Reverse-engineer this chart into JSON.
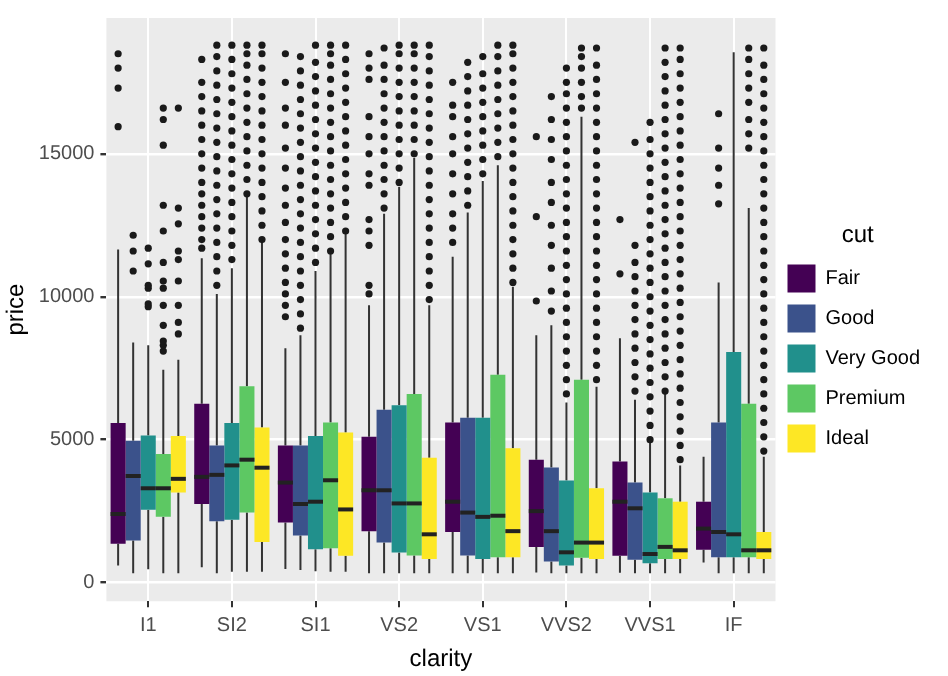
{
  "chart_data": {
    "type": "box",
    "xlabel": "clarity",
    "ylabel": "price",
    "legend_title": "cut",
    "legend": "right",
    "grid": true,
    "categories": [
      "I1",
      "SI2",
      "SI1",
      "VS2",
      "VS1",
      "VVS2",
      "VVS1",
      "IF"
    ],
    "ylim": [
      -650,
      19750
    ],
    "yticks": [
      0,
      5000,
      10000,
      15000
    ],
    "series": [
      {
        "name": "Fair",
        "color": "#440154",
        "boxes": [
          {
            "low": 600,
            "q1": 1360,
            "median": 2400,
            "q3": 5580,
            "high": 11650,
            "outliers": [
              15950,
              17300,
              18000,
              18500
            ]
          },
          {
            "low": 540,
            "q1": 2750,
            "median": 3700,
            "q3": 6260,
            "high": 11350,
            "outliers": [
              11700,
              12000,
              12400,
              12800,
              13200,
              13600,
              14000,
              14500,
              15000,
              15500,
              16000,
              16500,
              17000,
              17500,
              18300
            ]
          },
          {
            "low": 480,
            "q1": 2100,
            "median": 3500,
            "q3": 4800,
            "high": 8200,
            "outliers": [
              9300,
              9700,
              10100,
              10500,
              11000,
              11500,
              12000,
              12600,
              13200,
              13800,
              14500,
              15200,
              16000,
              16600,
              17500,
              18500
            ]
          },
          {
            "low": 330,
            "q1": 1800,
            "median": 3230,
            "q3": 5100,
            "high": 9700,
            "outliers": [
              10100,
              10400,
              11800,
              12300,
              12700,
              13900,
              14300,
              15000,
              15600,
              16300,
              17600,
              18000,
              18500
            ]
          },
          {
            "low": 330,
            "q1": 1770,
            "median": 2830,
            "q3": 5600,
            "high": 11400,
            "outliers": [
              11900,
              12400,
              12900,
              13600,
              14300,
              15000,
              15600,
              16300,
              16700,
              17500
            ]
          },
          {
            "low": 350,
            "q1": 1250,
            "median": 2500,
            "q3": 4300,
            "high": 8650,
            "outliers": [
              9850,
              12800,
              15600
            ]
          },
          {
            "low": 345,
            "q1": 940,
            "median": 2830,
            "q3": 4240,
            "high": 8550,
            "outliers": [
              10800,
              12700
            ]
          },
          {
            "low": 700,
            "q1": 1150,
            "median": 1890,
            "q3": 2830,
            "high": 4400
          }
        ]
      },
      {
        "name": "Good",
        "color": "#3b528b",
        "boxes": [
          {
            "low": 330,
            "q1": 1470,
            "median": 3730,
            "q3": 4960,
            "high": 8400,
            "outliers": [
              10900,
              11600,
              12150
            ]
          },
          {
            "low": 330,
            "q1": 2150,
            "median": 3770,
            "q3": 4800,
            "high": 10100,
            "outliers": [
              10400,
              10900,
              11400,
              11900,
              12400,
              12900,
              13400,
              13900,
              14400,
              14900,
              15400,
              15900,
              16400,
              16900,
              17400,
              17900,
              18400,
              18800
            ]
          },
          {
            "low": 440,
            "q1": 1650,
            "median": 2750,
            "q3": 4800,
            "high": 8650,
            "outliers": [
              8900,
              9400,
              9900,
              10400,
              10900,
              11400,
              11900,
              12400,
              12900,
              13400,
              13900,
              14400,
              14900,
              15400,
              15900,
              16400,
              16900,
              17400,
              17900,
              18400
            ]
          },
          {
            "low": 330,
            "q1": 1400,
            "median": 3230,
            "q3": 6050,
            "high": 12900,
            "outliers": [
              13100,
              13600,
              14100,
              14600,
              15100,
              15600,
              16100,
              16600,
              17100,
              17600,
              18100,
              18700
            ]
          },
          {
            "low": 330,
            "q1": 950,
            "median": 2450,
            "q3": 5770,
            "high": 12950,
            "outliers": [
              13200,
              13700,
              14200,
              14700,
              15200,
              15700,
              16200,
              16700,
              17200,
              17700,
              18200
            ]
          },
          {
            "low": 330,
            "q1": 740,
            "median": 1800,
            "q3": 4030,
            "high": 9000,
            "outliers": [
              9500,
              10200,
              11000,
              11800,
              12500,
              13300,
              14000,
              14800,
              15500,
              16200,
              17000
            ]
          },
          {
            "low": 330,
            "q1": 800,
            "median": 2600,
            "q3": 3500,
            "high": 6400,
            "outliers": [
              6700,
              7200,
              7700,
              8200,
              8700,
              9200,
              9700,
              10200,
              10700,
              11200,
              11800,
              15400
            ]
          },
          {
            "low": 330,
            "q1": 890,
            "median": 1770,
            "q3": 5600,
            "high": 10500,
            "outliers": [
              13250,
              13900,
              14500,
              15200,
              16400
            ]
          }
        ]
      },
      {
        "name": "Very Good",
        "color": "#21908c",
        "boxes": [
          {
            "low": 470,
            "q1": 2550,
            "median": 3300,
            "q3": 5150,
            "high": 8300,
            "outliers": [
              9650,
              9750,
              10300,
              10400,
              11150,
              11700
            ]
          },
          {
            "low": 380,
            "q1": 2200,
            "median": 4100,
            "q3": 5580,
            "high": 11000,
            "outliers": [
              11300,
              11800,
              12300,
              12800,
              13300,
              13800,
              14300,
              14800,
              15300,
              15800,
              16300,
              16800,
              17300,
              17800,
              18300,
              18800
            ]
          },
          {
            "low": 400,
            "q1": 1170,
            "median": 2830,
            "q3": 5130,
            "high": 10900,
            "outliers": [
              11200,
              11700,
              12200,
              12700,
              13200,
              13700,
              14200,
              14700,
              15200,
              15700,
              16200,
              16700,
              17200,
              17700,
              18200,
              18800
            ]
          },
          {
            "low": 330,
            "q1": 1050,
            "median": 2770,
            "q3": 6200,
            "high": 13850,
            "outliers": [
              14000,
              14500,
              15000,
              15500,
              16000,
              16500,
              17000,
              17500,
              18000,
              18500,
              18800
            ]
          },
          {
            "low": 330,
            "q1": 830,
            "median": 2300,
            "q3": 5770,
            "high": 14050,
            "outliers": [
              14300,
              14800,
              15300,
              15800,
              16300,
              16800,
              17300,
              17800,
              18400
            ]
          },
          {
            "low": 330,
            "q1": 600,
            "median": 1060,
            "q3": 3570,
            "high": 6300,
            "outliers": [
              6600,
              7100,
              7600,
              8100,
              8600,
              9100,
              9600,
              10100,
              10600,
              11100,
              11600,
              12100,
              12600,
              13100,
              13600,
              14100,
              14600,
              15100,
              15600,
              16100,
              16600,
              17100,
              17500,
              18000
            ]
          },
          {
            "low": 330,
            "q1": 680,
            "median": 1000,
            "q3": 3150,
            "high": 4900,
            "outliers": [
              5000,
              5500,
              6000,
              6500,
              7000,
              7500,
              8000,
              8500,
              9000,
              9500,
              10000,
              10500,
              11000,
              11500,
              12000,
              12500,
              13000,
              13500,
              14000,
              14500,
              15000,
              15500,
              16100
            ]
          },
          {
            "low": 330,
            "q1": 890,
            "median": 1690,
            "q3": 8070,
            "high": 18550
          }
        ]
      },
      {
        "name": "Premium",
        "color": "#5dc863",
        "boxes": [
          {
            "low": 330,
            "q1": 2300,
            "median": 3300,
            "q3": 4500,
            "high": 7450,
            "outliers": [
              8100,
              8300,
              8450,
              9000,
              9700,
              10300,
              10550,
              11200,
              12300,
              13200,
              15300,
              16200,
              16600
            ]
          },
          {
            "low": 380,
            "q1": 2450,
            "median": 4300,
            "q3": 6870,
            "high": 13500,
            "outliers": [
              13600,
              14100,
              14600,
              15100,
              15600,
              16100,
              16600,
              17100,
              17600,
              18100,
              18500,
              18800
            ]
          },
          {
            "low": 380,
            "q1": 1200,
            "median": 3580,
            "q3": 5600,
            "high": 11500,
            "outliers": [
              11600,
              12100,
              12600,
              13100,
              13600,
              14100,
              14600,
              15100,
              15600,
              16100,
              16600,
              17100,
              17600,
              18100,
              18500,
              18800
            ]
          },
          {
            "low": 330,
            "q1": 950,
            "median": 2770,
            "q3": 6600,
            "high": 14850,
            "outliers": [
              15000,
              15500,
              16000,
              16500,
              17000,
              17500,
              18000,
              18500,
              18800
            ]
          },
          {
            "low": 330,
            "q1": 890,
            "median": 2340,
            "q3": 7270,
            "high": 14600,
            "outliers": [
              14900,
              15400,
              15900,
              16400,
              16900,
              17400,
              17900,
              18400,
              18800
            ]
          },
          {
            "low": 330,
            "q1": 870,
            "median": 1400,
            "q3": 7100,
            "high": 16300,
            "outliers": [
              16600,
              17000,
              17500,
              18000,
              18400,
              18700
            ]
          },
          {
            "low": 330,
            "q1": 830,
            "median": 1250,
            "q3": 2950,
            "high": 6600,
            "outliers": [
              6700,
              7200,
              7700,
              8200,
              8700,
              9200,
              9700,
              10200,
              10700,
              11200,
              11700,
              12200,
              12700,
              13200,
              13700,
              14200,
              14700,
              15200,
              15700,
              16200,
              16700,
              17200,
              17700,
              18200,
              18700
            ]
          },
          {
            "low": 330,
            "q1": 890,
            "median": 1130,
            "q3": 6260,
            "high": 13100,
            "outliers": [
              15200,
              15700,
              16200,
              16800,
              17300,
              17800,
              18300,
              18700
            ]
          }
        ]
      },
      {
        "name": "Ideal",
        "color": "#fde725",
        "boxes": [
          {
            "low": 330,
            "q1": 3150,
            "median": 3630,
            "q3": 5130,
            "high": 7800,
            "outliers": [
              8700,
              9100,
              9700,
              10550,
              11300,
              11600,
              12550,
              13100,
              16600
            ]
          },
          {
            "low": 380,
            "q1": 1420,
            "median": 4020,
            "q3": 5430,
            "high": 11900,
            "outliers": [
              12000,
              12500,
              13000,
              13500,
              14000,
              14500,
              15000,
              15500,
              16000,
              16500,
              17000,
              17500,
              18000,
              18500,
              18800
            ]
          },
          {
            "low": 380,
            "q1": 940,
            "median": 2560,
            "q3": 5250,
            "high": 12250,
            "outliers": [
              12300,
              12800,
              13300,
              13800,
              14300,
              14800,
              15300,
              15800,
              16300,
              16800,
              17300,
              17800,
              18300,
              18800
            ]
          },
          {
            "low": 330,
            "q1": 830,
            "median": 1690,
            "q3": 4370,
            "high": 9700,
            "outliers": [
              9900,
              10400,
              10900,
              11400,
              11900,
              12400,
              12900,
              13400,
              13900,
              14400,
              14900,
              15400,
              15900,
              16400,
              16900,
              17400,
              17900,
              18400,
              18800
            ]
          },
          {
            "low": 330,
            "q1": 890,
            "median": 1800,
            "q3": 4700,
            "high": 10350,
            "outliers": [
              10500,
              11000,
              11500,
              12000,
              12500,
              13000,
              13500,
              14000,
              14500,
              15000,
              15500,
              16000,
              16500,
              17000,
              17500,
              18000,
              18500,
              18800
            ]
          },
          {
            "low": 330,
            "q1": 830,
            "median": 1400,
            "q3": 3300,
            "high": 6850,
            "outliers": [
              7100,
              7600,
              8100,
              8600,
              9100,
              9600,
              10100,
              10600,
              11100,
              11600,
              12100,
              12600,
              13100,
              13600,
              14100,
              14600,
              15100,
              15600,
              16100,
              16600,
              17100,
              17600,
              18100,
              18700
            ]
          },
          {
            "low": 330,
            "q1": 830,
            "median": 1130,
            "q3": 2830,
            "high": 4100,
            "outliers": [
              4300,
              4800,
              5300,
              5800,
              6300,
              6800,
              7300,
              7800,
              8300,
              8800,
              9300,
              9800,
              10300,
              10800,
              11300,
              11800,
              12300,
              12800,
              13300,
              13800,
              14300,
              14800,
              15300,
              15800,
              16300,
              16800,
              17300,
              17800,
              18300,
              18700
            ]
          },
          {
            "low": 330,
            "q1": 830,
            "median": 1130,
            "q3": 1770,
            "high": 4400,
            "outliers": [
              4600,
              5100,
              5600,
              6100,
              6600,
              7100,
              7600,
              8100,
              8600,
              9100,
              9600,
              10100,
              10600,
              11100,
              11600,
              12100,
              12600,
              13100,
              13600,
              14100,
              14600,
              15100,
              15600,
              16100,
              16600,
              17100,
              17600,
              18100,
              18700
            ]
          }
        ]
      }
    ]
  }
}
